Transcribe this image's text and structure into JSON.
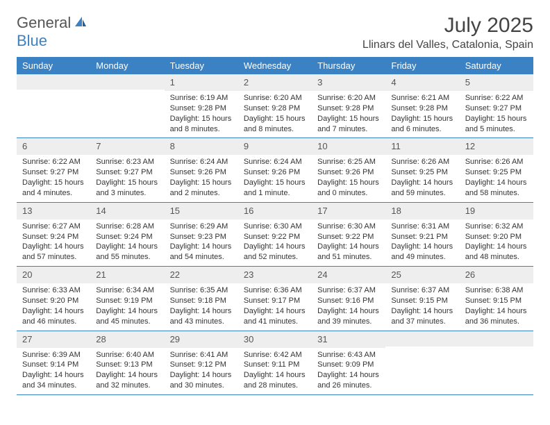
{
  "brand": {
    "general": "General",
    "blue": "Blue"
  },
  "title": "July 2025",
  "location": "Llinars del Valles, Catalonia, Spain",
  "colors": {
    "header_bg": "#3b82c4",
    "header_text": "#ffffff",
    "daynum_bg": "#eeeeee",
    "border": "#3b82c4",
    "text": "#333333"
  },
  "day_names": [
    "Sunday",
    "Monday",
    "Tuesday",
    "Wednesday",
    "Thursday",
    "Friday",
    "Saturday"
  ],
  "weeks": [
    [
      {
        "num": "",
        "sunrise": "",
        "sunset": "",
        "daylight": ""
      },
      {
        "num": "",
        "sunrise": "",
        "sunset": "",
        "daylight": ""
      },
      {
        "num": "1",
        "sunrise": "Sunrise: 6:19 AM",
        "sunset": "Sunset: 9:28 PM",
        "daylight": "Daylight: 15 hours and 8 minutes."
      },
      {
        "num": "2",
        "sunrise": "Sunrise: 6:20 AM",
        "sunset": "Sunset: 9:28 PM",
        "daylight": "Daylight: 15 hours and 8 minutes."
      },
      {
        "num": "3",
        "sunrise": "Sunrise: 6:20 AM",
        "sunset": "Sunset: 9:28 PM",
        "daylight": "Daylight: 15 hours and 7 minutes."
      },
      {
        "num": "4",
        "sunrise": "Sunrise: 6:21 AM",
        "sunset": "Sunset: 9:28 PM",
        "daylight": "Daylight: 15 hours and 6 minutes."
      },
      {
        "num": "5",
        "sunrise": "Sunrise: 6:22 AM",
        "sunset": "Sunset: 9:27 PM",
        "daylight": "Daylight: 15 hours and 5 minutes."
      }
    ],
    [
      {
        "num": "6",
        "sunrise": "Sunrise: 6:22 AM",
        "sunset": "Sunset: 9:27 PM",
        "daylight": "Daylight: 15 hours and 4 minutes."
      },
      {
        "num": "7",
        "sunrise": "Sunrise: 6:23 AM",
        "sunset": "Sunset: 9:27 PM",
        "daylight": "Daylight: 15 hours and 3 minutes."
      },
      {
        "num": "8",
        "sunrise": "Sunrise: 6:24 AM",
        "sunset": "Sunset: 9:26 PM",
        "daylight": "Daylight: 15 hours and 2 minutes."
      },
      {
        "num": "9",
        "sunrise": "Sunrise: 6:24 AM",
        "sunset": "Sunset: 9:26 PM",
        "daylight": "Daylight: 15 hours and 1 minute."
      },
      {
        "num": "10",
        "sunrise": "Sunrise: 6:25 AM",
        "sunset": "Sunset: 9:26 PM",
        "daylight": "Daylight: 15 hours and 0 minutes."
      },
      {
        "num": "11",
        "sunrise": "Sunrise: 6:26 AM",
        "sunset": "Sunset: 9:25 PM",
        "daylight": "Daylight: 14 hours and 59 minutes."
      },
      {
        "num": "12",
        "sunrise": "Sunrise: 6:26 AM",
        "sunset": "Sunset: 9:25 PM",
        "daylight": "Daylight: 14 hours and 58 minutes."
      }
    ],
    [
      {
        "num": "13",
        "sunrise": "Sunrise: 6:27 AM",
        "sunset": "Sunset: 9:24 PM",
        "daylight": "Daylight: 14 hours and 57 minutes."
      },
      {
        "num": "14",
        "sunrise": "Sunrise: 6:28 AM",
        "sunset": "Sunset: 9:24 PM",
        "daylight": "Daylight: 14 hours and 55 minutes."
      },
      {
        "num": "15",
        "sunrise": "Sunrise: 6:29 AM",
        "sunset": "Sunset: 9:23 PM",
        "daylight": "Daylight: 14 hours and 54 minutes."
      },
      {
        "num": "16",
        "sunrise": "Sunrise: 6:30 AM",
        "sunset": "Sunset: 9:22 PM",
        "daylight": "Daylight: 14 hours and 52 minutes."
      },
      {
        "num": "17",
        "sunrise": "Sunrise: 6:30 AM",
        "sunset": "Sunset: 9:22 PM",
        "daylight": "Daylight: 14 hours and 51 minutes."
      },
      {
        "num": "18",
        "sunrise": "Sunrise: 6:31 AM",
        "sunset": "Sunset: 9:21 PM",
        "daylight": "Daylight: 14 hours and 49 minutes."
      },
      {
        "num": "19",
        "sunrise": "Sunrise: 6:32 AM",
        "sunset": "Sunset: 9:20 PM",
        "daylight": "Daylight: 14 hours and 48 minutes."
      }
    ],
    [
      {
        "num": "20",
        "sunrise": "Sunrise: 6:33 AM",
        "sunset": "Sunset: 9:20 PM",
        "daylight": "Daylight: 14 hours and 46 minutes."
      },
      {
        "num": "21",
        "sunrise": "Sunrise: 6:34 AM",
        "sunset": "Sunset: 9:19 PM",
        "daylight": "Daylight: 14 hours and 45 minutes."
      },
      {
        "num": "22",
        "sunrise": "Sunrise: 6:35 AM",
        "sunset": "Sunset: 9:18 PM",
        "daylight": "Daylight: 14 hours and 43 minutes."
      },
      {
        "num": "23",
        "sunrise": "Sunrise: 6:36 AM",
        "sunset": "Sunset: 9:17 PM",
        "daylight": "Daylight: 14 hours and 41 minutes."
      },
      {
        "num": "24",
        "sunrise": "Sunrise: 6:37 AM",
        "sunset": "Sunset: 9:16 PM",
        "daylight": "Daylight: 14 hours and 39 minutes."
      },
      {
        "num": "25",
        "sunrise": "Sunrise: 6:37 AM",
        "sunset": "Sunset: 9:15 PM",
        "daylight": "Daylight: 14 hours and 37 minutes."
      },
      {
        "num": "26",
        "sunrise": "Sunrise: 6:38 AM",
        "sunset": "Sunset: 9:15 PM",
        "daylight": "Daylight: 14 hours and 36 minutes."
      }
    ],
    [
      {
        "num": "27",
        "sunrise": "Sunrise: 6:39 AM",
        "sunset": "Sunset: 9:14 PM",
        "daylight": "Daylight: 14 hours and 34 minutes."
      },
      {
        "num": "28",
        "sunrise": "Sunrise: 6:40 AM",
        "sunset": "Sunset: 9:13 PM",
        "daylight": "Daylight: 14 hours and 32 minutes."
      },
      {
        "num": "29",
        "sunrise": "Sunrise: 6:41 AM",
        "sunset": "Sunset: 9:12 PM",
        "daylight": "Daylight: 14 hours and 30 minutes."
      },
      {
        "num": "30",
        "sunrise": "Sunrise: 6:42 AM",
        "sunset": "Sunset: 9:11 PM",
        "daylight": "Daylight: 14 hours and 28 minutes."
      },
      {
        "num": "31",
        "sunrise": "Sunrise: 6:43 AM",
        "sunset": "Sunset: 9:09 PM",
        "daylight": "Daylight: 14 hours and 26 minutes."
      },
      {
        "num": "",
        "sunrise": "",
        "sunset": "",
        "daylight": ""
      },
      {
        "num": "",
        "sunrise": "",
        "sunset": "",
        "daylight": ""
      }
    ]
  ]
}
